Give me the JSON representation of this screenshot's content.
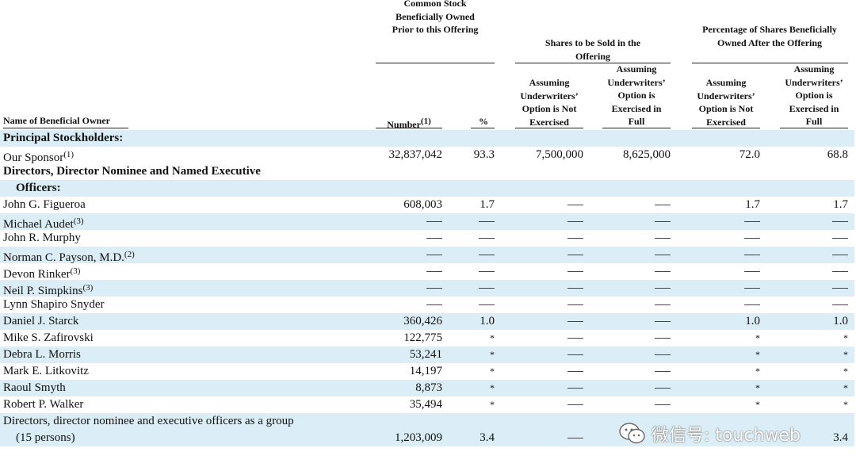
{
  "headers": {
    "owner": "Name of Beneficial Owner",
    "prior_group": "Common Stock Beneficially Owned Prior to this Offering",
    "sold_group": "Shares to be Sold in the Offering",
    "after_group": "Percentage of Shares Beneficially Owned After the Offering",
    "number": "Number",
    "number_note": "(1)",
    "percent": "%",
    "not_exercised": "Assuming Underwriters’ Option is Not Exercised",
    "exercised": "Assuming Underwriters’ Option is Exercised in Full"
  },
  "sections": {
    "principal": "Principal Stockholders:",
    "directors_1": "Directors, Director Nominee and Named Executive",
    "directors_2": "Officers:"
  },
  "rows": [
    {
      "name": "Our Sponsor",
      "note": "(1)",
      "number": "32,837,042",
      "pct": "93.3",
      "sold_not": "7,500,000",
      "sold_full": "8,625,000",
      "after_not": "72.0",
      "after_full": "68.8"
    },
    {
      "name": "John G. Figueroa",
      "note": "",
      "number": "608,003",
      "pct": "1.7",
      "sold_not": "—",
      "sold_full": "—",
      "after_not": "1.7",
      "after_full": "1.7"
    },
    {
      "name": "Michael Audet",
      "note": "(3)",
      "number": "—",
      "pct": "—",
      "sold_not": "—",
      "sold_full": "—",
      "after_not": "—",
      "after_full": "—"
    },
    {
      "name": "John R. Murphy",
      "note": "",
      "number": "—",
      "pct": "—",
      "sold_not": "—",
      "sold_full": "—",
      "after_not": "—",
      "after_full": "—"
    },
    {
      "name": "Norman C. Payson, M.D.",
      "note": "(2)",
      "number": "—",
      "pct": "—",
      "sold_not": "—",
      "sold_full": "—",
      "after_not": "—",
      "after_full": "—"
    },
    {
      "name": "Devon Rinker",
      "note": "(3)",
      "number": "—",
      "pct": "—",
      "sold_not": "—",
      "sold_full": "—",
      "after_not": "—",
      "after_full": "—"
    },
    {
      "name": "Neil P. Simpkins",
      "note": "(3)",
      "number": "—",
      "pct": "—",
      "sold_not": "—",
      "sold_full": "—",
      "after_not": "—",
      "after_full": "—"
    },
    {
      "name": "Lynn Shapiro Snyder",
      "note": "",
      "number": "—",
      "pct": "—",
      "sold_not": "—",
      "sold_full": "—",
      "after_not": "—",
      "after_full": "—"
    },
    {
      "name": "Daniel J. Starck",
      "note": "",
      "number": "360,426",
      "pct": "1.0",
      "sold_not": "—",
      "sold_full": "—",
      "after_not": "1.0",
      "after_full": "1.0"
    },
    {
      "name": "Mike S. Zafirovski",
      "note": "",
      "number": "122,775",
      "pct": "*",
      "sold_not": "—",
      "sold_full": "—",
      "after_not": "*",
      "after_full": "*"
    },
    {
      "name": "Debra L. Morris",
      "note": "",
      "number": "53,241",
      "pct": "*",
      "sold_not": "—",
      "sold_full": "—",
      "after_not": "*",
      "after_full": "*"
    },
    {
      "name": "Mark E. Litkovitz",
      "note": "",
      "number": "14,197",
      "pct": "*",
      "sold_not": "—",
      "sold_full": "—",
      "after_not": "*",
      "after_full": "*"
    },
    {
      "name": "Raoul Smyth",
      "note": "",
      "number": "8,873",
      "pct": "*",
      "sold_not": "—",
      "sold_full": "—",
      "after_not": "*",
      "after_full": "*"
    },
    {
      "name": "Robert P. Walker",
      "note": "",
      "number": "35,494",
      "pct": "*",
      "sold_not": "—",
      "sold_full": "—",
      "after_not": "*",
      "after_full": "*"
    }
  ],
  "group_total": {
    "name_1": "Directors, director nominee and executive officers as a group",
    "name_2": "(15 persons)",
    "number": "1,203,009",
    "pct": "3.4",
    "sold_not": "—",
    "after_full": "3.4"
  },
  "watermark": {
    "icon": "wechat-icon",
    "text": "微信号: touchweb"
  }
}
